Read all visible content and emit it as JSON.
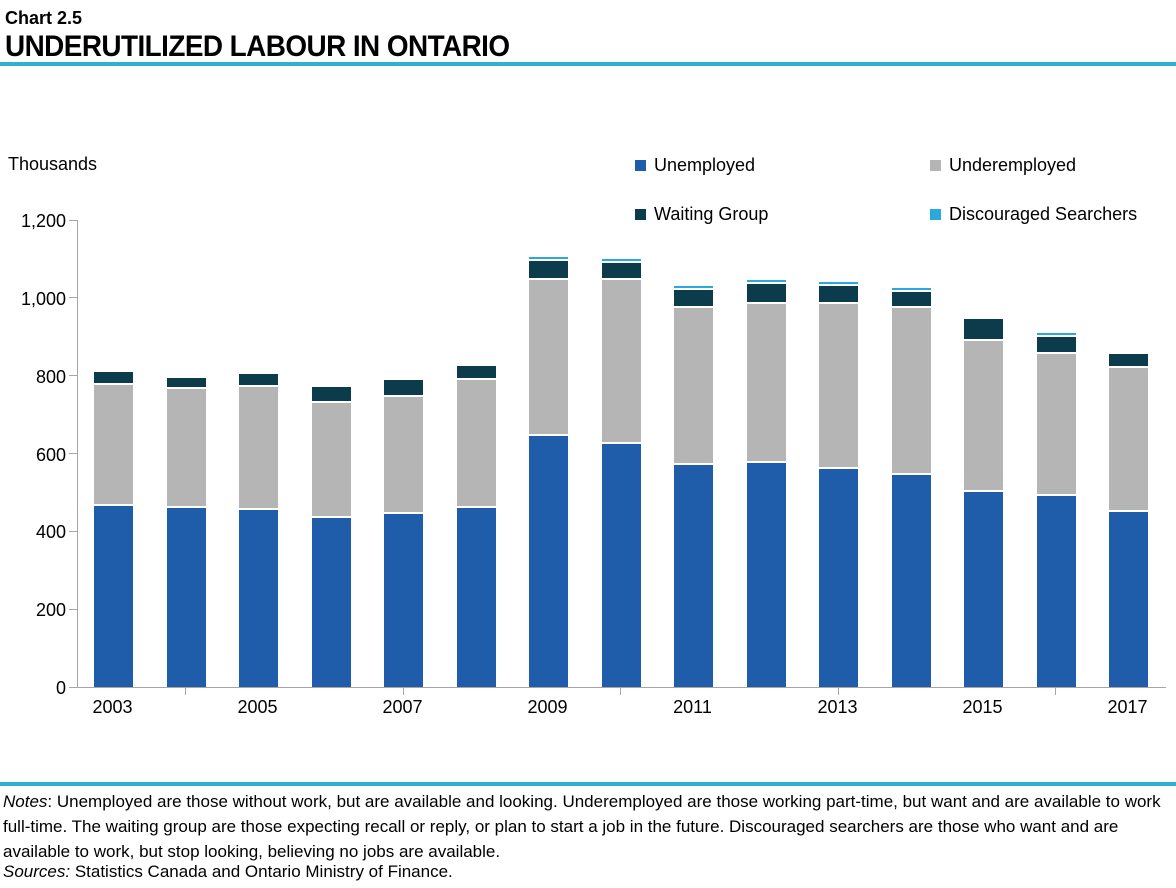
{
  "header": {
    "chart_number": "Chart 2.5",
    "title": "UNDERUTILIZED LABOUR IN ONTARIO"
  },
  "chart_data": {
    "type": "bar",
    "stacked": true,
    "title": "Underutilized Labour in Ontario",
    "unit_label": "Thousands",
    "categories": [
      2003,
      2004,
      2005,
      2006,
      2007,
      2008,
      2009,
      2010,
      2011,
      2012,
      2013,
      2014,
      2015,
      2016,
      2017
    ],
    "x_tick_labels": [
      "2003",
      "2005",
      "2007",
      "2009",
      "2011",
      "2013",
      "2015",
      "2017"
    ],
    "series": [
      {
        "name": "Unemployed",
        "color": "#1F5CA9",
        "values": [
          465,
          460,
          455,
          435,
          445,
          460,
          645,
          625,
          570,
          575,
          560,
          545,
          500,
          490,
          450
        ]
      },
      {
        "name": "Underemployed",
        "color": "#B5B5B5",
        "values": [
          310,
          305,
          315,
          295,
          300,
          330,
          400,
          420,
          405,
          410,
          425,
          430,
          390,
          365,
          370
        ]
      },
      {
        "name": "Waiting Group",
        "color": "#0C3C4C",
        "values": [
          35,
          30,
          35,
          40,
          45,
          35,
          50,
          45,
          45,
          50,
          45,
          40,
          55,
          45,
          35
        ]
      },
      {
        "name": "Discouraged Searchers",
        "color": "#29A9DC",
        "values": [
          0,
          0,
          0,
          0,
          0,
          0,
          10,
          10,
          10,
          10,
          10,
          10,
          5,
          10,
          0
        ]
      }
    ],
    "ylim": [
      0,
      1200
    ],
    "y_tick_values": [
      0,
      200,
      400,
      600,
      800,
      1000,
      1200
    ],
    "y_ticks": [
      "0",
      "200",
      "400",
      "600",
      "800",
      "1,000",
      "1,200"
    ],
    "grid": false,
    "legend_position": "top-right"
  },
  "notes": {
    "label": "Notes",
    "text": ": Unemployed are those without work, but are available and looking. Underemployed are those working part-time, but want and are available to work full-time. The waiting group are those expecting recall or reply, or plan to start a job in the future. Discouraged searchers are those who want and are available to work, but stop looking, believing no jobs are available."
  },
  "sources": {
    "label": "Sources:",
    "text": " Statistics Canada and Ontario Ministry of Finance."
  },
  "colors": {
    "accent_rule": "#2CB1CE",
    "axis": "#A6A6A6"
  }
}
